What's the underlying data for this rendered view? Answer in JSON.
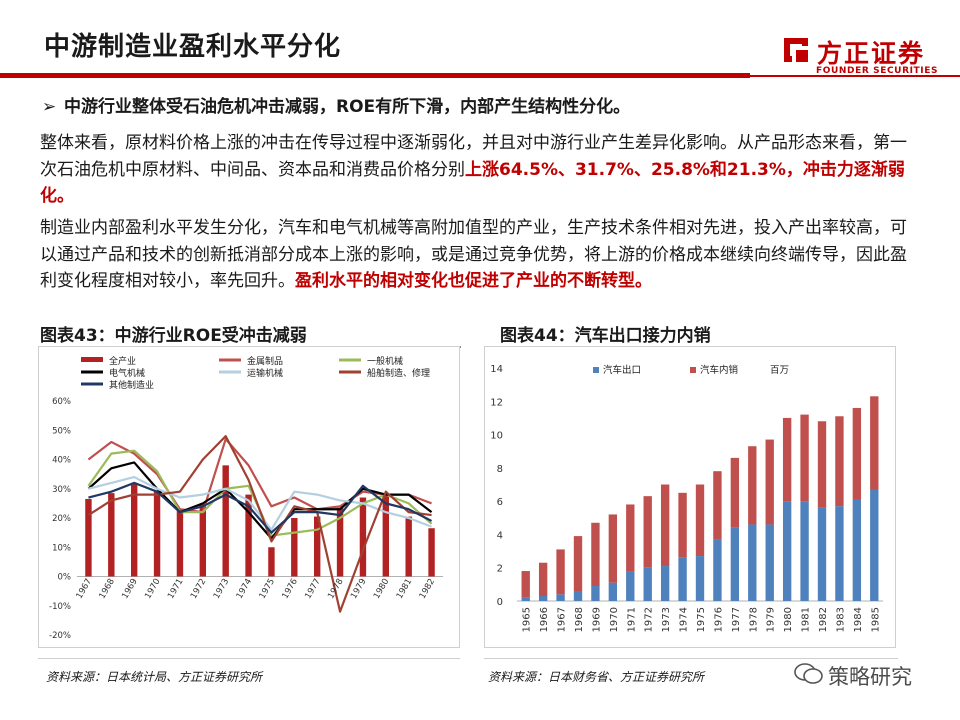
{
  "header": {
    "title": "中游制造业盈利水平分化",
    "logo_cn": "方正证券",
    "logo_en": "FOUNDER SECURITIES",
    "accent_color": "#c00000"
  },
  "bullet": {
    "icon": "right-arrow-icon",
    "text": "中游行业整体受石油危机冲击减弱，ROE有所下滑，内部产生结构性分化。"
  },
  "paragraph1": {
    "normal": "整体来看，原材料价格上涨的冲击在传导过程中逐渐弱化，并且对中游行业产生差异化影响。从产品形态来看，第一次石油危机中原材料、中间品、资本品和消费品价格分别",
    "highlight": "上涨64.5%、31.7%、25.8%和21.3%，冲击力逐渐弱化。"
  },
  "paragraph2": {
    "normal": "制造业内部盈利水平发生分化，汽车和电气机械等高附加值型的产业，生产技术条件相对先进，投入产出率较高，可以通过产品和技术的创新抵消部分成本上涨的影响，或是通过竞争优势，将上游的价格成本继续向终端传导，因此盈利变化程度相对较小，率先回升。",
    "highlight": "盈利水平的相对变化也促进了产业的不断转型。"
  },
  "chart1": {
    "heading": "图表43：中游行业ROE受冲击减弱",
    "source": "资料来源：日本统计局、方正证券研究所"
  },
  "chart2": {
    "heading": "图表44：汽车出口接力内销",
    "source": "资料来源：日本财务省、方正证券研究所"
  },
  "watermark": {
    "text": "策略研究",
    "icon": "wechat-icon"
  },
  "chart_data": [
    {
      "type": "bar+line",
      "title": "中游行业ROE受冲击减弱",
      "categories": [
        "1967",
        "1968",
        "1969",
        "1970",
        "1971",
        "1972",
        "1973",
        "1974",
        "1975",
        "1976",
        "1977",
        "1978",
        "1979",
        "1980",
        "1981",
        "1982"
      ],
      "ylim": [
        -0.2,
        0.6
      ],
      "y_ticks": [
        "60%",
        "50%",
        "40%",
        "30%",
        "20%",
        "10%",
        "0%",
        "-10%",
        "-20%"
      ],
      "bar_series": {
        "name": "全产业",
        "color": "#b22222",
        "values": [
          0.265,
          0.285,
          0.32,
          0.29,
          0.23,
          0.25,
          0.38,
          0.28,
          0.1,
          0.2,
          0.205,
          0.235,
          0.27,
          0.275,
          0.205,
          0.165
        ]
      },
      "series": [
        {
          "name": "金属制品",
          "color": "#c0504d",
          "values": [
            0.4,
            0.46,
            0.42,
            0.35,
            0.23,
            0.22,
            0.47,
            0.38,
            0.24,
            0.27,
            0.23,
            0.24,
            0.29,
            0.28,
            0.28,
            0.25
          ]
        },
        {
          "name": "一般机械",
          "color": "#9bbb59",
          "values": [
            0.31,
            0.42,
            0.43,
            0.36,
            0.22,
            0.22,
            0.3,
            0.31,
            0.14,
            0.15,
            0.16,
            0.2,
            0.25,
            0.28,
            0.25,
            0.18
          ]
        },
        {
          "name": "电气机械",
          "color": "#000000",
          "values": [
            0.3,
            0.37,
            0.39,
            0.3,
            0.22,
            0.25,
            0.3,
            0.22,
            0.13,
            0.23,
            0.23,
            0.23,
            0.3,
            0.28,
            0.28,
            0.22
          ]
        },
        {
          "name": "运输机械",
          "color": "#b4cfe0",
          "values": [
            0.3,
            0.32,
            0.34,
            0.3,
            0.27,
            0.28,
            0.3,
            0.26,
            0.16,
            0.29,
            0.28,
            0.26,
            0.25,
            0.22,
            0.2,
            0.17
          ]
        },
        {
          "name": "船舶制造、修理",
          "color": "#a04030",
          "values": [
            0.21,
            0.26,
            0.28,
            0.28,
            0.29,
            0.4,
            0.48,
            0.33,
            0.12,
            0.24,
            0.22,
            -0.12,
            0.09,
            0.29,
            0.22,
            0.21
          ]
        },
        {
          "name": "其他制造业",
          "color": "#1f3864",
          "values": [
            0.27,
            0.29,
            0.32,
            0.29,
            0.22,
            0.24,
            0.28,
            0.24,
            0.15,
            0.22,
            0.22,
            0.21,
            0.31,
            0.25,
            0.23,
            0.19
          ]
        }
      ]
    },
    {
      "type": "stacked-bar",
      "title": "汽车出口接力内销",
      "unit_label": "百万",
      "categories": [
        "1965",
        "1966",
        "1967",
        "1968",
        "1969",
        "1970",
        "1971",
        "1972",
        "1973",
        "1974",
        "1975",
        "1976",
        "1977",
        "1978",
        "1979",
        "1980",
        "1981",
        "1982",
        "1983",
        "1984",
        "1985"
      ],
      "ylim": [
        0,
        14
      ],
      "y_ticks": [
        "0",
        "2",
        "4",
        "6",
        "8",
        "10",
        "12",
        "14"
      ],
      "series": [
        {
          "name": "汽车出口",
          "color": "#4f81bd",
          "values": [
            0.2,
            0.3,
            0.4,
            0.6,
            0.9,
            1.1,
            1.8,
            2.0,
            2.1,
            2.6,
            2.7,
            3.7,
            4.4,
            4.6,
            4.6,
            6.0,
            6.0,
            5.6,
            5.7,
            6.1,
            6.7
          ]
        },
        {
          "name": "汽车内销",
          "color": "#c0504d",
          "values": [
            1.6,
            2.0,
            2.7,
            3.3,
            3.8,
            4.1,
            4.0,
            4.3,
            4.9,
            3.9,
            4.3,
            4.1,
            4.2,
            4.7,
            5.1,
            5.0,
            5.2,
            5.2,
            5.4,
            5.5,
            5.6
          ]
        }
      ]
    }
  ]
}
